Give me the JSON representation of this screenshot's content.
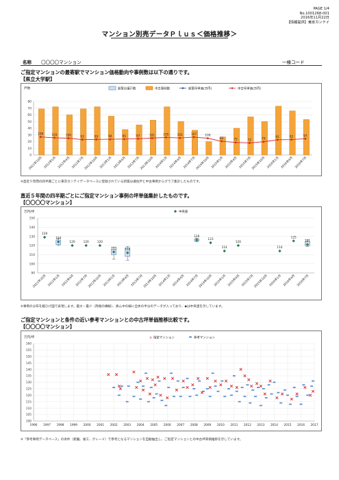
{
  "header": {
    "page": "PAGE 1/4",
    "doc_no": "No.1001268-001",
    "date": "2016年11月22日",
    "provider": "【情報提供】東京カンテイ"
  },
  "title": "マンション別売データＰｌｕｓ＜価格推移＞",
  "name_label": "名称",
  "name_value": "〇〇〇〇マンション",
  "code_label": "一棟コード",
  "section1": {
    "heading": "ご指定マンションの最寄駅でマンション価格動向や事例数は以下の通りです。",
    "station": "【県立大学駅】",
    "note": "※直近５年間の四半期ごとに東京カンテイデータベースに登録されている新築分譲住戸と中古事例からグラフ集計したものです。"
  },
  "section2": {
    "heading": "直近５年間の四半期ごとにご指定マンション事例の坪単価集計したものです。",
    "mansion": "【〇〇〇〇マンション】",
    "note": "※事例の分布を箱ひげ図で表現します。最大・最少（両端の横線）、真ん中の線に全体の半分のデータが入っており、◆は中央値を示しています。"
  },
  "section3": {
    "heading": "ご指定マンションと条件の近い参考マンションとの中古坪単価推移比較です。",
    "mansion": "【〇〇〇〇マンション】",
    "note": "※「参考事例データベース」の条件（距離、竣工、グレード）で参考となるマンションを自動抽出し、ご指定マンションとの中古坪単価推移を示しています。"
  },
  "chart_data": [
    {
      "type": "bar+line",
      "ylabel": "戸数",
      "ylim": [
        0,
        80
      ],
      "yticks": [
        0,
        10,
        20,
        30,
        40,
        50,
        60,
        70,
        80
      ],
      "y2lim": [
        0,
        320
      ],
      "legend": [
        "新築分譲戸数",
        "中古事例数",
        "新築坪単価(万円)",
        "中古坪単価(万円)"
      ],
      "categories": [
        "2011年10月",
        "2012年1月",
        "2012年4月",
        "2012年7月",
        "2012年10月",
        "2013年1月",
        "2013年4月",
        "2013年7月",
        "2013年10月",
        "2014年1月",
        "2014年4月",
        "2014年7月",
        "2014年10月",
        "2015年1月",
        "2015年4月",
        "2015年7月",
        "2015年10月",
        "2016年1月",
        "2016年4月",
        "2016年7月"
      ],
      "new_units": [
        0,
        0,
        0,
        0,
        0,
        0,
        0,
        0,
        0,
        0,
        0,
        0,
        0,
        0,
        0,
        0,
        0,
        0,
        0,
        0
      ],
      "used_cases": [
        69,
        72,
        60,
        69,
        72,
        58,
        38,
        45,
        52,
        72,
        50,
        37,
        20,
        27,
        40,
        57,
        50,
        73,
        66,
        53
      ],
      "used_price": [
        108,
        103,
        100,
        92,
        93,
        94,
        95,
        97,
        101,
        105,
        102,
        107,
        100,
        82,
        75,
        72,
        79,
        91,
        92,
        97
      ],
      "used_price_labels": [
        "108",
        "103",
        "100",
        "92",
        "93",
        "94",
        "95",
        "97",
        "101",
        "105",
        "102",
        "107",
        "100",
        "82",
        "75",
        "72",
        "79",
        "91",
        "92",
        "97"
      ]
    },
    {
      "type": "box",
      "ylabel": "万円/坪",
      "ylim": [
        90,
        150
      ],
      "yticks": [
        90,
        100,
        110,
        120,
        130,
        140,
        150
      ],
      "legend": [
        "中央値"
      ],
      "categories": [
        "2011年10月",
        "2012年1月",
        "2012年4月",
        "2012年7月",
        "2012年10月",
        "2013年1月",
        "2013年4月",
        "2013年7月",
        "2013年10月",
        "2014年1月",
        "2014年4月",
        "2014年7月",
        "2014年10月",
        "2015年1月",
        "2015年4月",
        "2015年7月",
        "2015年10月",
        "2016年1月",
        "2016年4月",
        "2016年7月"
      ],
      "medians": [
        129,
        124,
        120,
        120,
        120,
        113,
        112,
        null,
        null,
        null,
        null,
        126,
        123,
        114,
        120,
        null,
        null,
        114,
        125,
        121
      ],
      "median_labels": [
        "129",
        "124",
        "120",
        "120",
        "120",
        "113",
        "112",
        "",
        "",
        "",
        "",
        "126",
        "123",
        "114",
        "120",
        "",
        "",
        "114",
        "125",
        "121"
      ],
      "boxes": [
        null,
        {
          "min": 120,
          "q1": 121,
          "q3": 126,
          "max": 128
        },
        null,
        null,
        null,
        {
          "min": 105,
          "q1": 110,
          "q3": 116,
          "max": 118
        },
        {
          "min": 104,
          "q1": 108,
          "q3": 117,
          "max": 119
        },
        null,
        null,
        null,
        null,
        {
          "min": 124,
          "q1": 125,
          "q3": 127,
          "max": 128
        },
        null,
        null,
        null,
        null,
        null,
        null,
        null,
        {
          "min": 119,
          "q1": 120,
          "q3": 124,
          "max": 126
        }
      ]
    },
    {
      "type": "scatter",
      "ylabel": "万円/坪",
      "ylim": [
        100,
        160
      ],
      "yticks": [
        100,
        105,
        110,
        115,
        120,
        125,
        130,
        135,
        140,
        145,
        150,
        155,
        160
      ],
      "xlim": [
        1996,
        2017
      ],
      "xticks": [
        "1996",
        "1997",
        "1998",
        "1999",
        "2000",
        "2001",
        "2002",
        "2003",
        "2004",
        "2005",
        "2006",
        "2007",
        "2008",
        "2009",
        "2010",
        "2011",
        "2012",
        "2013",
        "2014",
        "2015",
        "2016",
        "2017"
      ],
      "legend": [
        "指定マンション",
        "参考マンション"
      ],
      "colors": {
        "target": "#d62828",
        "reference": "#5b8ed6"
      },
      "target_points": [
        [
          2001.6,
          136
        ],
        [
          2002.2,
          136
        ],
        [
          2002.4,
          127
        ],
        [
          2002.5,
          125
        ],
        [
          2003.5,
          138
        ],
        [
          2003.7,
          126
        ],
        [
          2004.0,
          131
        ],
        [
          2004.2,
          124
        ],
        [
          2004.5,
          133
        ],
        [
          2004.7,
          121
        ],
        [
          2004.9,
          132
        ],
        [
          2005.1,
          128
        ],
        [
          2005.3,
          134
        ],
        [
          2005.5,
          120
        ],
        [
          2005.8,
          133
        ],
        [
          2006.0,
          118
        ],
        [
          2006.4,
          133
        ],
        [
          2006.7,
          124
        ],
        [
          2007.2,
          131
        ],
        [
          2007.5,
          126
        ],
        [
          2007.9,
          128
        ],
        [
          2008.3,
          133
        ],
        [
          2008.6,
          122
        ],
        [
          2009.0,
          133
        ],
        [
          2009.2,
          126
        ],
        [
          2009.6,
          131
        ],
        [
          2010.0,
          128
        ],
        [
          2010.4,
          131
        ],
        [
          2010.8,
          127
        ],
        [
          2011.2,
          126
        ],
        [
          2011.5,
          140
        ],
        [
          2011.8,
          135
        ],
        [
          2012.1,
          132
        ],
        [
          2012.3,
          127
        ],
        [
          2012.7,
          129
        ],
        [
          2013.0,
          127
        ],
        [
          2013.3,
          121
        ],
        [
          2013.7,
          131
        ],
        [
          2014.2,
          118
        ],
        [
          2014.6,
          121
        ],
        [
          2015.3,
          117
        ],
        [
          2015.7,
          121
        ],
        [
          2016.3,
          126
        ],
        [
          2016.7,
          120
        ],
        [
          2016.9,
          123
        ]
      ],
      "reference_points": [
        [
          2002.0,
          126
        ],
        [
          2002.4,
          120
        ],
        [
          2002.6,
          127
        ],
        [
          2003.0,
          115
        ],
        [
          2003.1,
          127
        ],
        [
          2003.5,
          119
        ],
        [
          2003.8,
          130
        ],
        [
          2004.0,
          117
        ],
        [
          2004.2,
          127
        ],
        [
          2004.4,
          137
        ],
        [
          2004.6,
          115
        ],
        [
          2004.8,
          126
        ],
        [
          2005.0,
          118
        ],
        [
          2005.2,
          121
        ],
        [
          2005.4,
          131
        ],
        [
          2005.6,
          116
        ],
        [
          2005.9,
          112
        ],
        [
          2006.1,
          126
        ],
        [
          2006.3,
          137
        ],
        [
          2006.5,
          119
        ],
        [
          2006.8,
          131
        ],
        [
          2007.0,
          119
        ],
        [
          2007.2,
          126
        ],
        [
          2007.5,
          133
        ],
        [
          2007.7,
          119
        ],
        [
          2008.0,
          125
        ],
        [
          2008.2,
          120
        ],
        [
          2008.4,
          131
        ],
        [
          2008.7,
          123
        ],
        [
          2009.0,
          125
        ],
        [
          2009.2,
          119
        ],
        [
          2009.4,
          137
        ],
        [
          2009.6,
          127
        ],
        [
          2009.8,
          123
        ],
        [
          2010.1,
          131
        ],
        [
          2010.3,
          119
        ],
        [
          2010.6,
          125
        ],
        [
          2010.8,
          120
        ],
        [
          2011.0,
          135
        ],
        [
          2011.2,
          123
        ],
        [
          2011.4,
          115
        ],
        [
          2011.6,
          126
        ],
        [
          2011.8,
          119
        ],
        [
          2012.0,
          128
        ],
        [
          2012.2,
          114
        ],
        [
          2012.4,
          124
        ],
        [
          2012.6,
          119
        ],
        [
          2012.8,
          126
        ],
        [
          2013.0,
          112
        ],
        [
          2013.2,
          125
        ],
        [
          2013.4,
          118
        ],
        [
          2013.6,
          128
        ],
        [
          2013.8,
          121
        ],
        [
          2014.0,
          130
        ],
        [
          2014.3,
          122
        ],
        [
          2014.5,
          114
        ],
        [
          2014.8,
          124
        ],
        [
          2015.0,
          120
        ],
        [
          2015.2,
          113
        ],
        [
          2015.5,
          126
        ],
        [
          2015.7,
          119
        ],
        [
          2016.0,
          113
        ],
        [
          2016.2,
          128
        ],
        [
          2016.5,
          120
        ],
        [
          2016.8,
          127
        ],
        [
          2016.9,
          131
        ]
      ]
    }
  ]
}
